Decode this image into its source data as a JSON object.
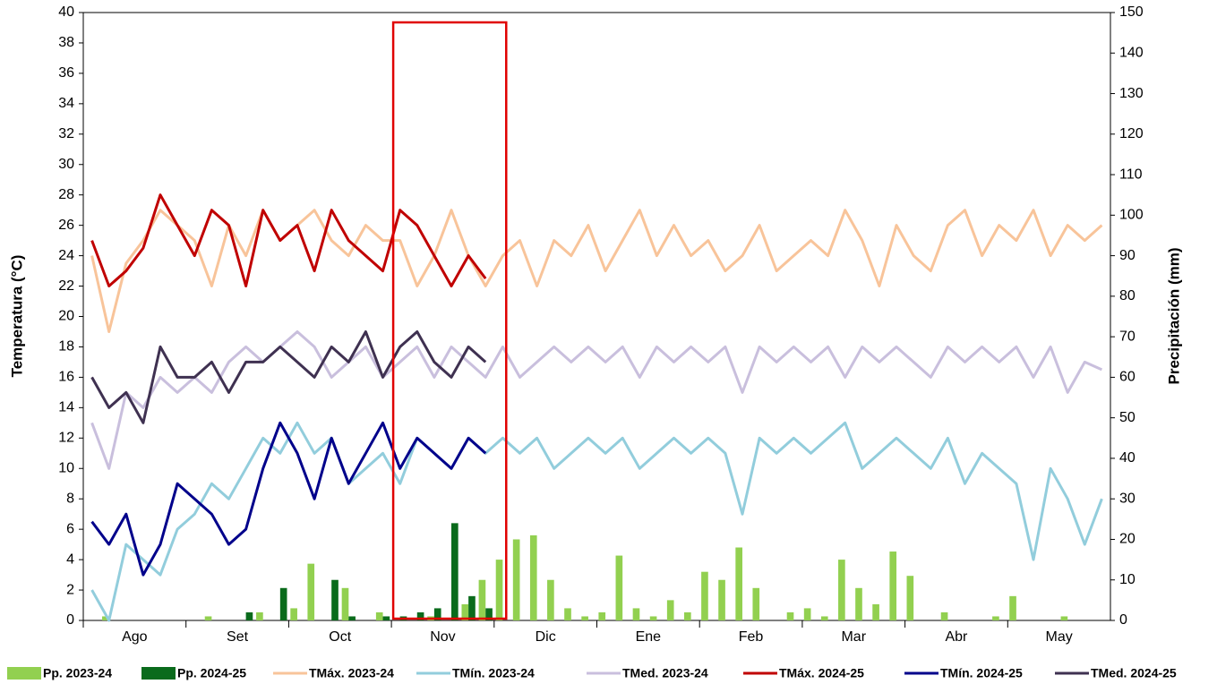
{
  "chart_data": {
    "type": "line",
    "y_label": "Temperatura (°C)",
    "y2_label": "Precipitación (mm)",
    "categories": [
      "Ago",
      null,
      null,
      null,
      null,
      null,
      "Set",
      null,
      null,
      null,
      null,
      null,
      "Oct",
      null,
      null,
      null,
      null,
      null,
      "Nov",
      null,
      null,
      null,
      null,
      null,
      "Dic",
      null,
      null,
      null,
      null,
      null,
      "Ene",
      null,
      null,
      null,
      null,
      null,
      "Feb",
      null,
      null,
      null,
      null,
      null,
      "Mar",
      null,
      null,
      null,
      null,
      null,
      "Abr",
      null,
      null,
      null,
      null,
      null,
      "May",
      null,
      null,
      null,
      null,
      null
    ],
    "ylim": [
      0,
      40
    ],
    "yticks": [
      0,
      2,
      4,
      6,
      8,
      10,
      12,
      14,
      16,
      18,
      20,
      22,
      24,
      26,
      28,
      30,
      32,
      34,
      36,
      38,
      40
    ],
    "y2lim": [
      0,
      150
    ],
    "y2ticks": [
      0,
      10,
      20,
      30,
      40,
      50,
      60,
      70,
      80,
      90,
      100,
      110,
      120,
      130,
      140,
      150
    ],
    "series": [
      {
        "name": "Pp. 2023-24",
        "type": "bar",
        "axis": "y2",
        "color": "#92d050",
        "values": [
          0,
          1,
          0,
          0,
          0,
          0,
          0,
          1,
          0,
          0,
          2,
          0,
          3,
          14,
          0,
          8,
          0,
          2,
          0,
          0,
          1,
          0,
          4,
          10,
          15,
          20,
          21,
          10,
          3,
          1,
          2,
          16,
          3,
          1,
          5,
          2,
          12,
          10,
          18,
          8,
          0,
          2,
          3,
          1,
          15,
          8,
          4,
          17,
          11,
          0,
          2,
          0,
          0,
          1,
          6,
          0,
          0,
          1,
          0,
          0
        ]
      },
      {
        "name": "Pp. 2024-25",
        "type": "bar",
        "axis": "y2",
        "color": "#0a6b1c",
        "values": [
          0,
          0,
          0,
          0,
          0,
          0,
          0,
          0,
          0,
          2,
          0,
          8,
          0,
          0,
          10,
          1,
          0,
          1,
          1,
          2,
          3,
          24,
          6,
          3,
          null,
          null,
          null,
          null,
          null,
          null,
          null,
          null,
          null,
          null,
          null,
          null,
          null,
          null,
          null,
          null,
          null,
          null,
          null,
          null,
          null,
          null,
          null,
          null,
          null,
          null,
          null,
          null,
          null,
          null,
          null,
          null,
          null,
          null,
          null,
          null
        ]
      },
      {
        "name": "TMáx. 2023-24",
        "type": "line",
        "color": "#f8c49a",
        "values": [
          24,
          19,
          23.5,
          25,
          27,
          26,
          25,
          22,
          26,
          24,
          27,
          25,
          26,
          27,
          25,
          24,
          26,
          25,
          25,
          22,
          24,
          27,
          24,
          22,
          24,
          25,
          22,
          25,
          24,
          26,
          23,
          25,
          27,
          24,
          26,
          24,
          25,
          23,
          24,
          26,
          23,
          24,
          25,
          24,
          27,
          25,
          22,
          26,
          24,
          23,
          26,
          27,
          24,
          26,
          25,
          27,
          24,
          26,
          25,
          26
        ]
      },
      {
        "name": "TMín. 2023-24",
        "type": "line",
        "color": "#92cddc",
        "values": [
          2,
          0,
          5,
          4,
          3,
          6,
          7,
          9,
          8,
          10,
          12,
          11,
          13,
          11,
          12,
          9,
          10,
          11,
          9,
          12,
          11,
          10,
          12,
          11,
          12,
          11,
          12,
          10,
          11,
          12,
          11,
          12,
          10,
          11,
          12,
          11,
          12,
          11,
          7,
          12,
          11,
          12,
          11,
          12,
          13,
          10,
          11,
          12,
          11,
          10,
          12,
          9,
          11,
          10,
          9,
          4,
          10,
          8,
          5,
          8
        ]
      },
      {
        "name": "TMed. 2023-24",
        "type": "line",
        "color": "#c9bfdd",
        "values": [
          13,
          10,
          15,
          14,
          16,
          15,
          16,
          15,
          17,
          18,
          17,
          18,
          19,
          18,
          16,
          17,
          18,
          16,
          17,
          18,
          16,
          18,
          17,
          16,
          18,
          16,
          17,
          18,
          17,
          18,
          17,
          18,
          16,
          18,
          17,
          18,
          17,
          18,
          15,
          18,
          17,
          18,
          17,
          18,
          16,
          18,
          17,
          18,
          17,
          16,
          18,
          17,
          18,
          17,
          18,
          16,
          18,
          15,
          17,
          16.5
        ]
      },
      {
        "name": "TMáx. 2024-25",
        "type": "line",
        "color": "#c00000",
        "values": [
          25,
          22,
          23,
          24.5,
          28,
          26,
          24,
          27,
          26,
          22,
          27,
          25,
          26,
          23,
          27,
          25,
          24,
          23,
          27,
          26,
          24,
          22,
          24,
          22.5,
          null,
          null,
          null,
          null,
          null,
          null,
          null,
          null,
          null,
          null,
          null,
          null,
          null,
          null,
          null,
          null,
          null,
          null,
          null,
          null,
          null,
          null,
          null,
          null,
          null,
          null,
          null,
          null,
          null,
          null,
          null,
          null,
          null,
          null,
          null,
          null
        ]
      },
      {
        "name": "TMín. 2024-25",
        "type": "line",
        "color": "#00008b",
        "values": [
          6.5,
          5,
          7,
          3,
          5,
          9,
          8,
          7,
          5,
          6,
          10,
          13,
          11,
          8,
          12,
          9,
          11,
          13,
          10,
          12,
          11,
          10,
          12,
          11,
          null,
          null,
          null,
          null,
          null,
          null,
          null,
          null,
          null,
          null,
          null,
          null,
          null,
          null,
          null,
          null,
          null,
          null,
          null,
          null,
          null,
          null,
          null,
          null,
          null,
          null,
          null,
          null,
          null,
          null,
          null,
          null,
          null,
          null,
          null,
          null
        ]
      },
      {
        "name": "TMed. 2024-25",
        "type": "line",
        "color": "#3f3151",
        "values": [
          16,
          14,
          15,
          13,
          18,
          16,
          16,
          17,
          15,
          17,
          17,
          18,
          17,
          16,
          18,
          17,
          19,
          16,
          18,
          19,
          17,
          16,
          18,
          17,
          null,
          null,
          null,
          null,
          null,
          null,
          null,
          null,
          null,
          null,
          null,
          null,
          null,
          null,
          null,
          null,
          null,
          null,
          null,
          null,
          null,
          null,
          null,
          null,
          null,
          null,
          null,
          null,
          null,
          null,
          null,
          null,
          null,
          null,
          null,
          null
        ]
      }
    ]
  }
}
